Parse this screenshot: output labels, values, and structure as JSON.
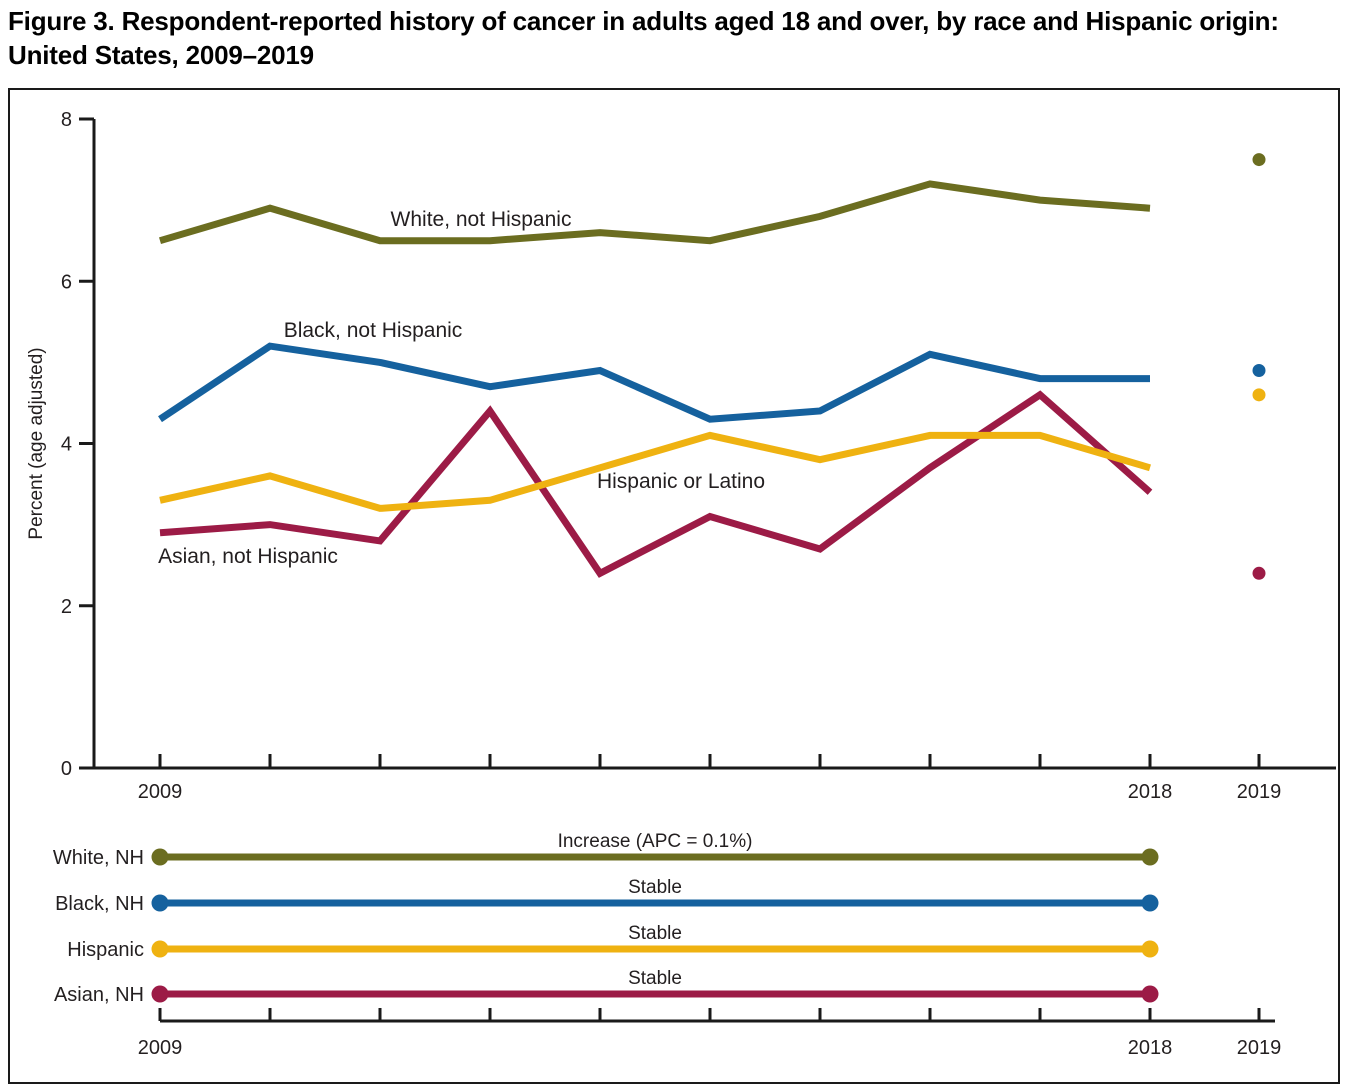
{
  "figure": {
    "title": "Figure 3. Respondent-reported history of cancer in adults aged 18 and over, by race and Hispanic origin: United States, 2009–2019"
  },
  "chart_data": {
    "type": "line",
    "title": "Respondent-reported history of cancer in adults aged 18 and over, by race and Hispanic origin: United States, 2009–2019",
    "ylabel": "Percent (age adjusted)",
    "ylim": [
      0,
      8
    ],
    "yticks": [
      0,
      2,
      4,
      6,
      8
    ],
    "years": [
      2009,
      2010,
      2011,
      2012,
      2013,
      2014,
      2015,
      2016,
      2017,
      2018
    ],
    "separate_point_year": 2019,
    "x_axis_labels": [
      {
        "label": "2009",
        "year": 2009
      },
      {
        "label": "2018",
        "year": 2018
      },
      {
        "label": "2019",
        "year": 2019
      }
    ],
    "grid": false,
    "legend_position": "labels-on-lines",
    "series": [
      {
        "name": "White, not Hispanic",
        "short_label": "White, NH",
        "color": "#6B6D20",
        "values": [
          6.5,
          6.9,
          6.5,
          6.5,
          6.6,
          6.5,
          6.8,
          7.2,
          7.0,
          6.9
        ],
        "value_2019": 7.5,
        "trend_label": "Increase (APC = 0.1%)"
      },
      {
        "name": "Black, not Hispanic",
        "short_label": "Black, NH",
        "color": "#15619E",
        "values": [
          4.3,
          5.2,
          5.0,
          4.7,
          4.9,
          4.3,
          4.4,
          5.1,
          4.8,
          4.8
        ],
        "value_2019": 4.9,
        "trend_label": "Stable"
      },
      {
        "name": "Hispanic or Latino",
        "short_label": "Hispanic",
        "color": "#EFB211",
        "values": [
          3.3,
          3.6,
          3.2,
          3.3,
          3.7,
          4.1,
          3.8,
          4.1,
          4.1,
          3.7
        ],
        "value_2019": 4.6,
        "trend_label": "Stable"
      },
      {
        "name": "Asian, not Hispanic",
        "short_label": "Asian, NH",
        "color": "#9C1B46",
        "values": [
          2.9,
          3.0,
          2.8,
          4.4,
          2.4,
          3.1,
          2.7,
          3.7,
          4.6,
          3.4
        ],
        "value_2019": 2.4,
        "trend_label": "Stable"
      }
    ]
  }
}
